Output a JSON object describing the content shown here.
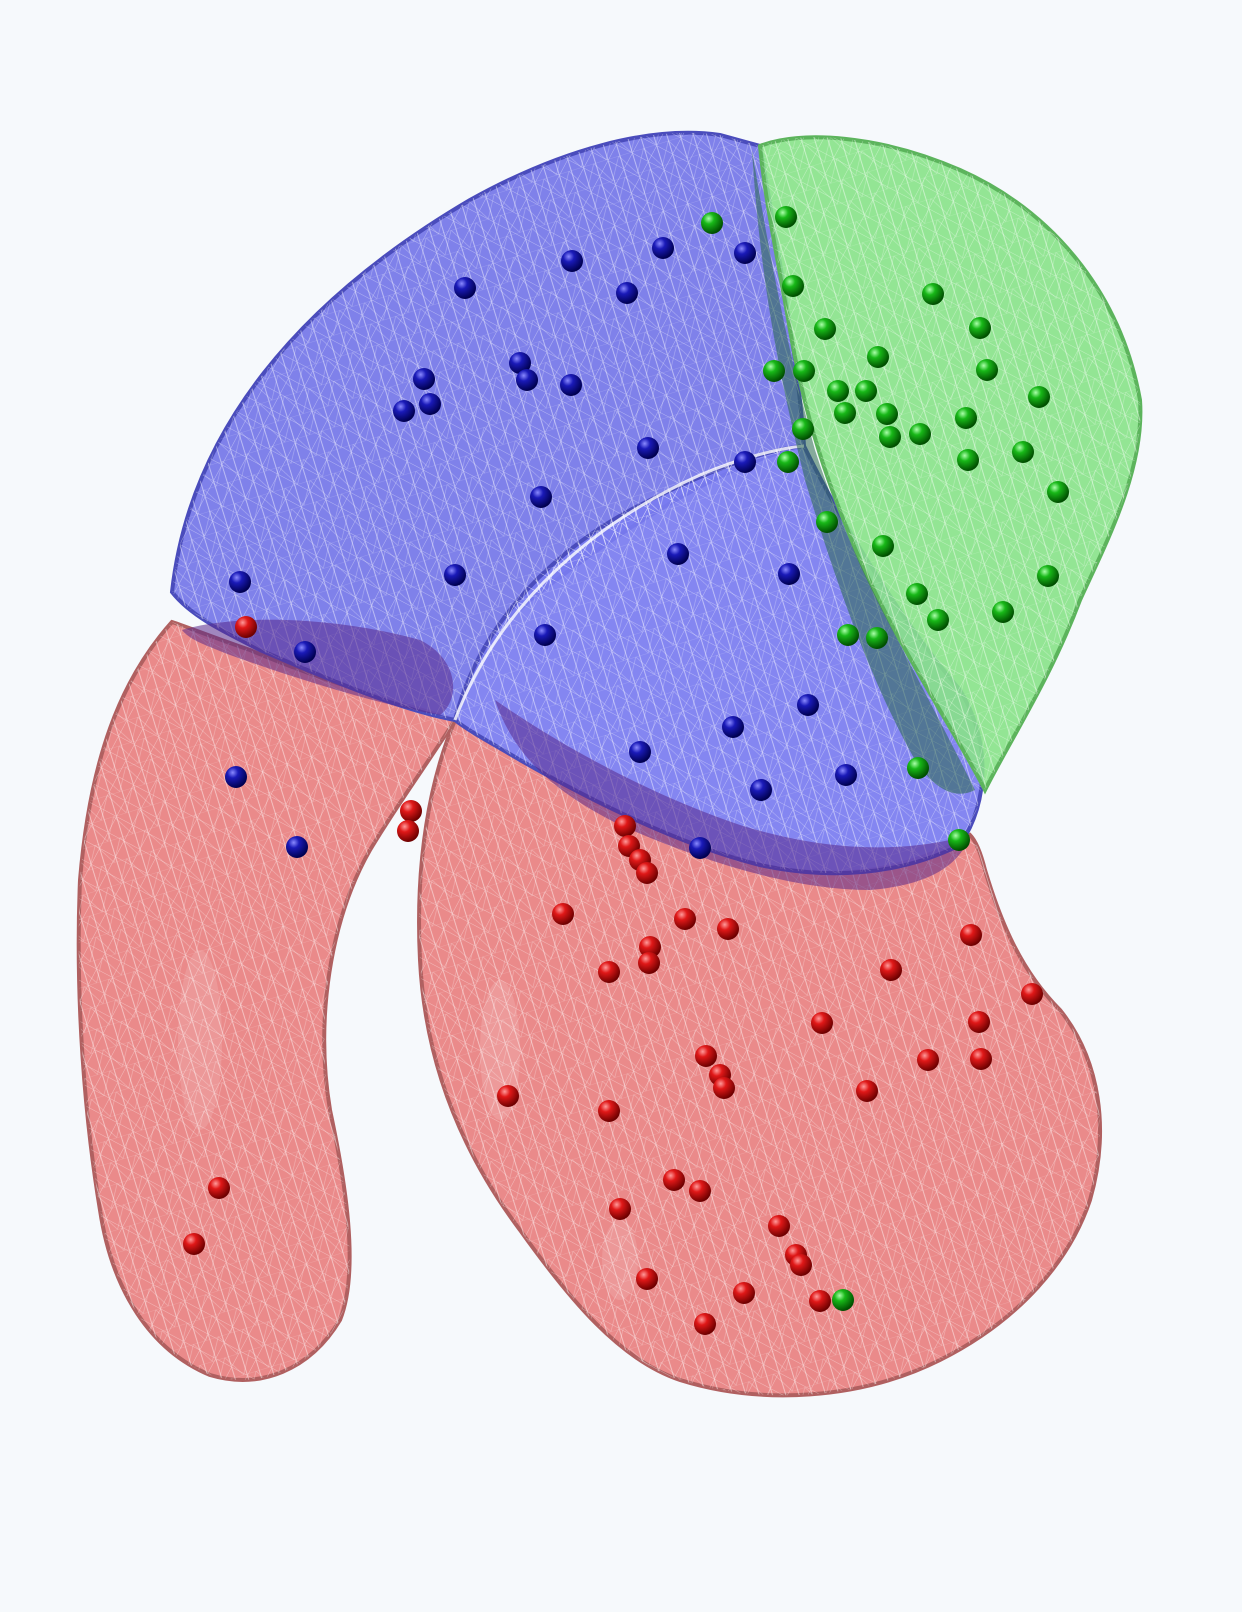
{
  "scene": {
    "background": "#f6f9fc",
    "mesh_color": "#ffffff",
    "regions": [
      {
        "name": "blue",
        "fill": "#6d6fe6",
        "edge": "#4a4cbc",
        "sphere": "#1414b4"
      },
      {
        "name": "green",
        "fill": "#86e086",
        "edge": "#5cb45c",
        "sphere": "#14a814"
      },
      {
        "name": "red",
        "fill": "#ea8080",
        "edge": "#b05858",
        "sphere": "#d21414"
      }
    ]
  }
}
